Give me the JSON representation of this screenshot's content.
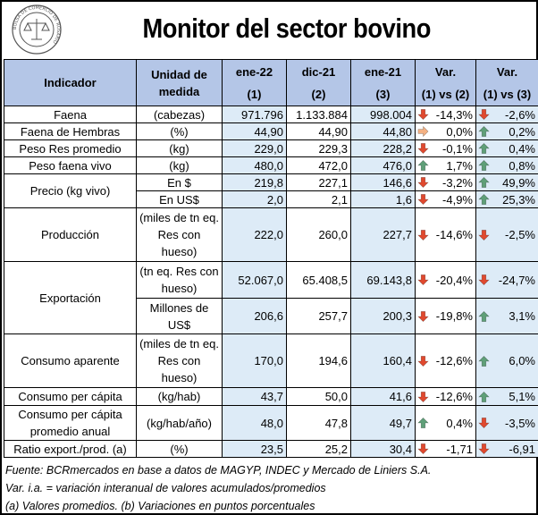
{
  "title": "Monitor del sector bovino",
  "logo": {
    "icon": "seal-icon",
    "ring_text": "BOLSA DE COMERCIO DE ROSARIO"
  },
  "header": {
    "indicador": "Indicador",
    "unidad": "Unidad de medida",
    "col1_top": "ene-22",
    "col1_sub": "(1)",
    "col2_top": "dic-21",
    "col2_sub": "(2)",
    "col3_top": "ene-21",
    "col3_sub": "(3)",
    "var1_top": "Var.",
    "var1_sub": "(1) vs (2)",
    "var2_top": "Var.",
    "var2_sub": "(1) vs (3)"
  },
  "rows": [
    {
      "name": "Faena",
      "unit": "(cabezas)",
      "c1": "971.796",
      "c2": "1.133.884",
      "c3": "998.004",
      "v1": "-14,3%",
      "v1_dir": "down",
      "v2": "-2,6%",
      "v2_dir": "down"
    },
    {
      "name": "Faena de Hembras",
      "unit": "(%)",
      "c1": "44,90",
      "c2": "44,90",
      "c3": "44,80",
      "v1": "0,0%",
      "v1_dir": "flat",
      "v2": "0,2%",
      "v2_dir": "up"
    },
    {
      "name": "Peso Res promedio",
      "unit": "(kg)",
      "c1": "229,0",
      "c2": "229,3",
      "c3": "228,2",
      "v1": "-0,1%",
      "v1_dir": "down",
      "v2": "0,4%",
      "v2_dir": "up"
    },
    {
      "name": "Peso faena vivo",
      "unit": "(kg)",
      "c1": "480,0",
      "c2": "472,0",
      "c3": "476,0",
      "v1": "1,7%",
      "v1_dir": "up",
      "v2": "0,8%",
      "v2_dir": "up"
    },
    {
      "name": "Precio (kg vivo)",
      "unit": "En $",
      "c1": "219,8",
      "c2": "227,1",
      "c3": "146,6",
      "v1": "-3,2%",
      "v1_dir": "down",
      "v2": "49,9%",
      "v2_dir": "up"
    },
    {
      "unit": "En US$",
      "c1": "2,0",
      "c2": "2,1",
      "c3": "1,6",
      "v1": "-4,9%",
      "v1_dir": "down",
      "v2": "25,3%",
      "v2_dir": "up"
    },
    {
      "name": "Producción",
      "unit": "(miles de tn eq. Res con hueso)",
      "c1": "222,0",
      "c2": "260,0",
      "c3": "227,7",
      "v1": "-14,6%",
      "v1_dir": "down",
      "v2": "-2,5%",
      "v2_dir": "down"
    },
    {
      "name": "Exportación",
      "unit": "(tn eq. Res con hueso)",
      "c1": "52.067,0",
      "c2": "65.408,5",
      "c3": "69.143,8",
      "v1": "-20,4%",
      "v1_dir": "down",
      "v2": "-24,7%",
      "v2_dir": "down"
    },
    {
      "unit": "Millones de US$",
      "c1": "206,6",
      "c2": "257,7",
      "c3": "200,3",
      "v1": "-19,8%",
      "v1_dir": "down",
      "v2": "3,1%",
      "v2_dir": "up"
    },
    {
      "name": "Consumo aparente",
      "unit": "(miles de tn eq. Res con hueso)",
      "c1": "170,0",
      "c2": "194,6",
      "c3": "160,4",
      "v1": "-12,6%",
      "v1_dir": "down",
      "v2": "6,0%",
      "v2_dir": "up"
    },
    {
      "name": "Consumo per cápita",
      "unit": "(kg/hab)",
      "c1": "43,7",
      "c2": "50,0",
      "c3": "41,6",
      "v1": "-12,6%",
      "v1_dir": "down",
      "v2": "5,1%",
      "v2_dir": "up"
    },
    {
      "name": "Consumo per cápita promedio anual",
      "unit": "(kg/hab/año)",
      "c1": "48,0",
      "c2": "47,8",
      "c3": "49,7",
      "v1": "0,4%",
      "v1_dir": "up",
      "v2": "-3,5%",
      "v2_dir": "down"
    },
    {
      "name": "Ratio export./prod. (a)",
      "unit": "(%)",
      "c1": "23,5",
      "c2": "25,2",
      "c3": "30,4",
      "v1": "-1,71",
      "v1_dir": "down",
      "v2": "-6,91",
      "v2_dir": "down"
    }
  ],
  "footer": [
    "Fuente: BCRmercados en base a datos de MAGYP, INDEC y Mercado de Liniers S.A.",
    "Var. i.a. = variación interanual de valores acumulados/promedios",
    "(a) Valores promedios. (b) Variaciones en puntos porcentuales"
  ],
  "colors": {
    "header_bg": "#b4c6e7",
    "alt_bg": "#ddebf7",
    "arrow_down": "#e0492f",
    "arrow_up": "#5f9f78",
    "arrow_flat": "#f4b183"
  }
}
